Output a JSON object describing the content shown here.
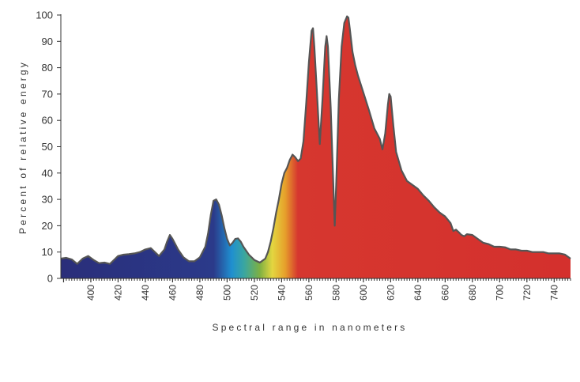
{
  "chart_data": {
    "type": "area",
    "xlabel": "Spectral range in nanometers",
    "ylabel": "Percent of relative energy",
    "xlim": [
      378,
      752
    ],
    "ylim": [
      0,
      100
    ],
    "x_ticks": [
      400,
      420,
      440,
      460,
      480,
      500,
      520,
      540,
      560,
      580,
      600,
      620,
      640,
      660,
      680,
      700,
      720,
      740
    ],
    "y_ticks": [
      0,
      10,
      20,
      30,
      40,
      50,
      60,
      70,
      80,
      90,
      100
    ],
    "grid": false,
    "legend": "none",
    "colors": {
      "outline": "#555555",
      "axis": "#333333",
      "gradient": [
        "#2a2e7a",
        "#2b3a8a",
        "#1f8fd0",
        "#3aa6a0",
        "#7db043",
        "#e4d640",
        "#e6a02b",
        "#d6372f",
        "#d4302d"
      ]
    },
    "series": [
      {
        "x": [
          378,
          382,
          386,
          390,
          394,
          398,
          402,
          406,
          410,
          414,
          418,
          420,
          424,
          428,
          432,
          436,
          440,
          444,
          446,
          450,
          454,
          456,
          458,
          460,
          464,
          468,
          472,
          476,
          480,
          484,
          486,
          488,
          490,
          492,
          494,
          496,
          498,
          500,
          502,
          504,
          506,
          508,
          510,
          512,
          516,
          520,
          524,
          528,
          530,
          532,
          534,
          536,
          538,
          540,
          542,
          544,
          546,
          548,
          550,
          552,
          554,
          556,
          558,
          560,
          562,
          563,
          564,
          566,
          568,
          570,
          572,
          573,
          574,
          576,
          578,
          579,
          580,
          582,
          584,
          586,
          588,
          589,
          590,
          592,
          594,
          596,
          600,
          604,
          608,
          612,
          614,
          616,
          618,
          619,
          620,
          622,
          624,
          628,
          632,
          636,
          640,
          644,
          648,
          652,
          656,
          660,
          664,
          666,
          668,
          670,
          672,
          674,
          676,
          680,
          684,
          688,
          692,
          696,
          700,
          704,
          708,
          712,
          716,
          720,
          724,
          728,
          732,
          736,
          740,
          744,
          748,
          752
        ],
        "values": [
          7.5,
          7.8,
          7.2,
          5.5,
          7.5,
          8.5,
          7.0,
          5.8,
          6.0,
          5.5,
          7.5,
          8.5,
          9.0,
          9.2,
          9.5,
          10.0,
          11.0,
          11.5,
          10.5,
          8.5,
          11.0,
          14.0,
          16.5,
          15.0,
          11.0,
          8.0,
          6.5,
          6.5,
          8.0,
          12.0,
          17.0,
          24.0,
          29.5,
          30.0,
          28.0,
          24.0,
          19.0,
          15.0,
          12.5,
          13.5,
          15.0,
          15.2,
          14.0,
          12.0,
          9.0,
          7.0,
          6.0,
          7.5,
          10.0,
          14.0,
          19.0,
          25.0,
          30.0,
          36.0,
          40.0,
          42.0,
          45.0,
          47.0,
          46.0,
          44.5,
          45.5,
          52.0,
          66.0,
          82.0,
          94.0,
          95.0,
          88.0,
          70.0,
          51.0,
          68.0,
          88.0,
          92.0,
          88.0,
          65.0,
          35.0,
          20.0,
          35.0,
          68.0,
          88.0,
          97.0,
          99.5,
          99.0,
          95.0,
          86.0,
          81.0,
          77.0,
          70.5,
          64.0,
          57.0,
          53.0,
          49.0,
          55.0,
          66.0,
          70.0,
          69.0,
          58.0,
          48.0,
          41.0,
          37.0,
          35.5,
          34.0,
          31.5,
          29.5,
          27.0,
          25.0,
          23.5,
          21.0,
          18.0,
          18.5,
          17.5,
          16.5,
          16.0,
          16.8,
          16.5,
          15.0,
          13.5,
          13.0,
          12.0,
          12.0,
          11.8,
          11.0,
          11.0,
          10.5,
          10.5,
          10.0,
          10.0,
          10.0,
          9.5,
          9.5,
          9.5,
          9.0,
          7.5
        ]
      }
    ]
  }
}
